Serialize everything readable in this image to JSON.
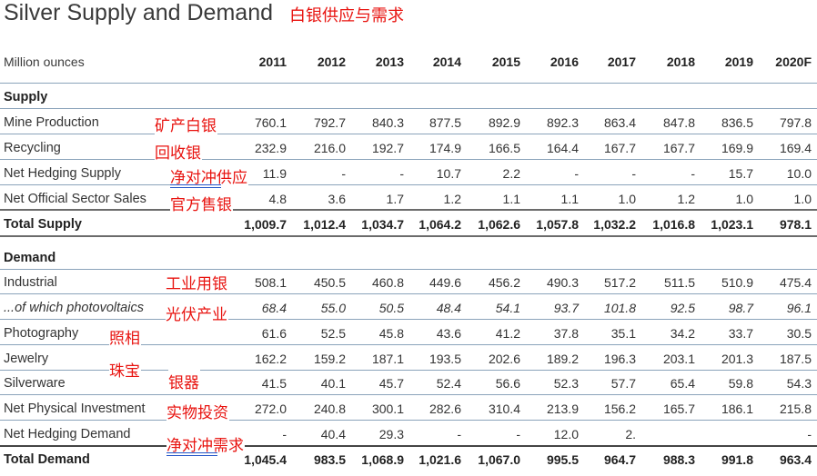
{
  "title": "Silver Supply and Demand",
  "title_cn": "白银供应与需求",
  "header": {
    "label": "Million ounces",
    "years": [
      "2011",
      "2012",
      "2013",
      "2014",
      "2015",
      "2016",
      "2017",
      "2018",
      "2019",
      "2020F"
    ]
  },
  "supply": {
    "heading": "Supply",
    "rows": [
      {
        "label": "Mine Production",
        "cn": "矿产白银",
        "values": [
          "760.1",
          "792.7",
          "840.3",
          "877.5",
          "892.9",
          "892.3",
          "863.4",
          "847.8",
          "836.5",
          "797.8"
        ]
      },
      {
        "label": "Recycling",
        "cn": "回收银",
        "values": [
          "232.9",
          "216.0",
          "192.7",
          "174.9",
          "166.5",
          "164.4",
          "167.7",
          "167.7",
          "169.9",
          "169.4"
        ]
      },
      {
        "label": "Net Hedging Supply",
        "cn": "净对冲供应",
        "values": [
          "11.9",
          "-",
          "-",
          "10.7",
          "2.2",
          "-",
          "-",
          "-",
          "15.7",
          "10.0"
        ]
      },
      {
        "label": "Net Official Sector Sales",
        "cn": "官方售银",
        "values": [
          "4.8",
          "3.6",
          "1.7",
          "1.2",
          "1.1",
          "1.1",
          "1.0",
          "1.2",
          "1.0",
          "1.0"
        ]
      }
    ],
    "total": {
      "label": "Total Supply",
      "values": [
        "1,009.7",
        "1,012.4",
        "1,034.7",
        "1,064.2",
        "1,062.6",
        "1,057.8",
        "1,032.2",
        "1,016.8",
        "1,023.1",
        "978.1"
      ]
    }
  },
  "demand": {
    "heading": "Demand",
    "rows": [
      {
        "label": "Industrial",
        "cn": "工业用银",
        "values": [
          "508.1",
          "450.5",
          "460.8",
          "449.6",
          "456.2",
          "490.3",
          "517.2",
          "511.5",
          "510.9",
          "475.4"
        ]
      },
      {
        "label": "...of which photovoltaics",
        "cn": "光伏产业",
        "values": [
          "68.4",
          "55.0",
          "50.5",
          "48.4",
          "54.1",
          "93.7",
          "101.8",
          "92.5",
          "98.7",
          "96.1"
        ]
      },
      {
        "label": "Photography",
        "cn": "照相",
        "values": [
          "61.6",
          "52.5",
          "45.8",
          "43.6",
          "41.2",
          "37.8",
          "35.1",
          "34.2",
          "33.7",
          "30.5"
        ]
      },
      {
        "label": "Jewelry",
        "cn": "珠宝",
        "values": [
          "162.2",
          "159.2",
          "187.1",
          "193.5",
          "202.6",
          "189.2",
          "196.3",
          "203.1",
          "201.3",
          "187.5"
        ]
      },
      {
        "label": "Silverware",
        "cn": "银器",
        "values": [
          "41.5",
          "40.1",
          "45.7",
          "52.4",
          "56.6",
          "52.3",
          "57.7",
          "65.4",
          "59.8",
          "54.3"
        ]
      },
      {
        "label": "Net Physical Investment",
        "cn": "实物投资",
        "values": [
          "272.0",
          "240.8",
          "300.1",
          "282.6",
          "310.4",
          "213.9",
          "156.2",
          "165.7",
          "186.1",
          "215.8"
        ]
      },
      {
        "label": "Net Hedging Demand",
        "cn": "净对冲需求",
        "values": [
          "-",
          "40.4",
          "29.3",
          "-",
          "-",
          "12.0",
          "2.",
          "",
          "",
          "-"
        ]
      }
    ],
    "total": {
      "label": "Total Demand",
      "values": [
        "1,045.4",
        "983.5",
        "1,068.9",
        "1,021.6",
        "1,067.0",
        "995.5",
        "964.7",
        "988.3",
        "991.8",
        "963.4"
      ]
    }
  }
}
